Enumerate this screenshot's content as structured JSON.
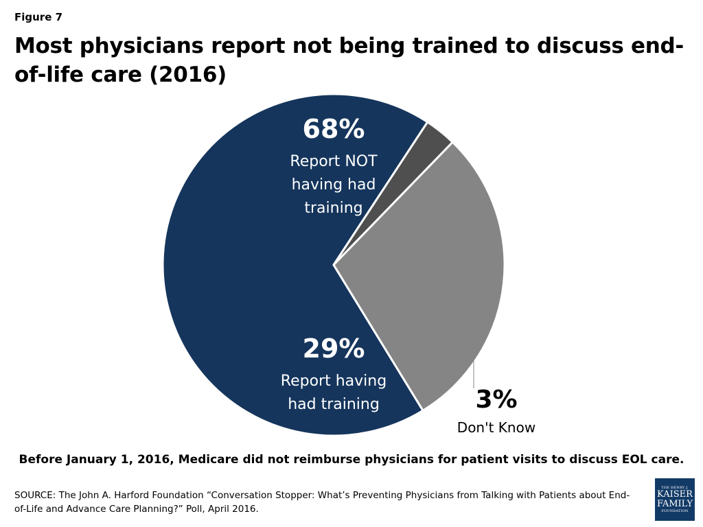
{
  "figure_label": "Figure 7",
  "title": "Most physicians report not being trained to discuss end-of-life care (2016)",
  "chart_data": {
    "type": "pie",
    "slices": [
      {
        "label_lines": [
          "Report NOT",
          "having had",
          "training"
        ],
        "value_text": "68%",
        "value": 68,
        "color": "#15355c"
      },
      {
        "label_lines": [
          "Don't Know"
        ],
        "value_text": "3%",
        "value": 3,
        "color": "#4f4f4f"
      },
      {
        "label_lines": [
          "Report having",
          "had training"
        ],
        "value_text": "29%",
        "value": 29,
        "color": "#858585"
      }
    ]
  },
  "note": "Before January 1, 2016, Medicare did not reimburse physicians for patient visits to discuss EOL care.",
  "source": "SOURCE: The John A. Harford Foundation “Conversation Stopper: What’s Preventing Physicians from Talking with Patients about End-of-Life and Advance Care Planning?” Poll, April 2016.",
  "logo": {
    "line1": "THE HENRY J.",
    "line2": "KAISER",
    "line3": "FAMILY",
    "line4": "FOUNDATION"
  }
}
